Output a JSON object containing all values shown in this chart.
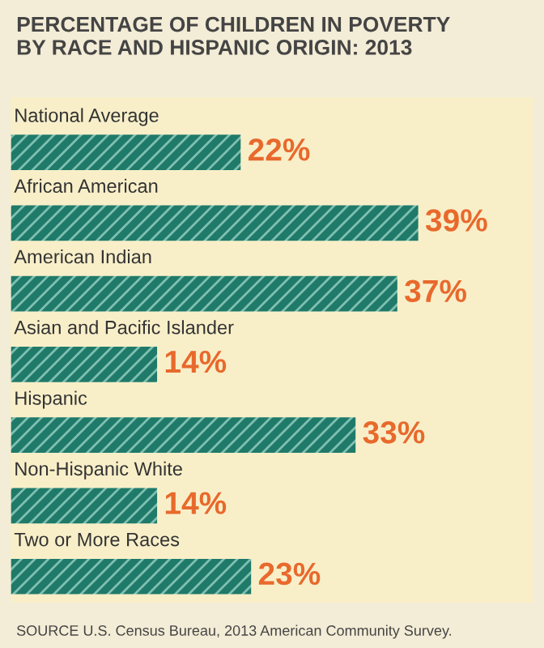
{
  "chart_data": {
    "type": "bar",
    "orientation": "horizontal",
    "title": "PERCENTAGE OF CHILDREN IN POVERTY\nBY RACE AND HISPANIC ORIGIN: 2013",
    "categories": [
      "National Average",
      "African American",
      "American Indian",
      "Asian and Pacific Islander",
      "Hispanic",
      "Non-Hispanic White",
      "Two or More Races"
    ],
    "values": [
      22,
      39,
      37,
      14,
      33,
      14,
      23
    ],
    "value_labels": [
      "22%",
      "39%",
      "37%",
      "14%",
      "33%",
      "14%",
      "23%"
    ],
    "color": "#1f7a6a",
    "xlim": [
      0,
      50
    ],
    "annotations": [
      "SOURCE U.S. Census Bureau, 2013 American Community Survey."
    ]
  }
}
